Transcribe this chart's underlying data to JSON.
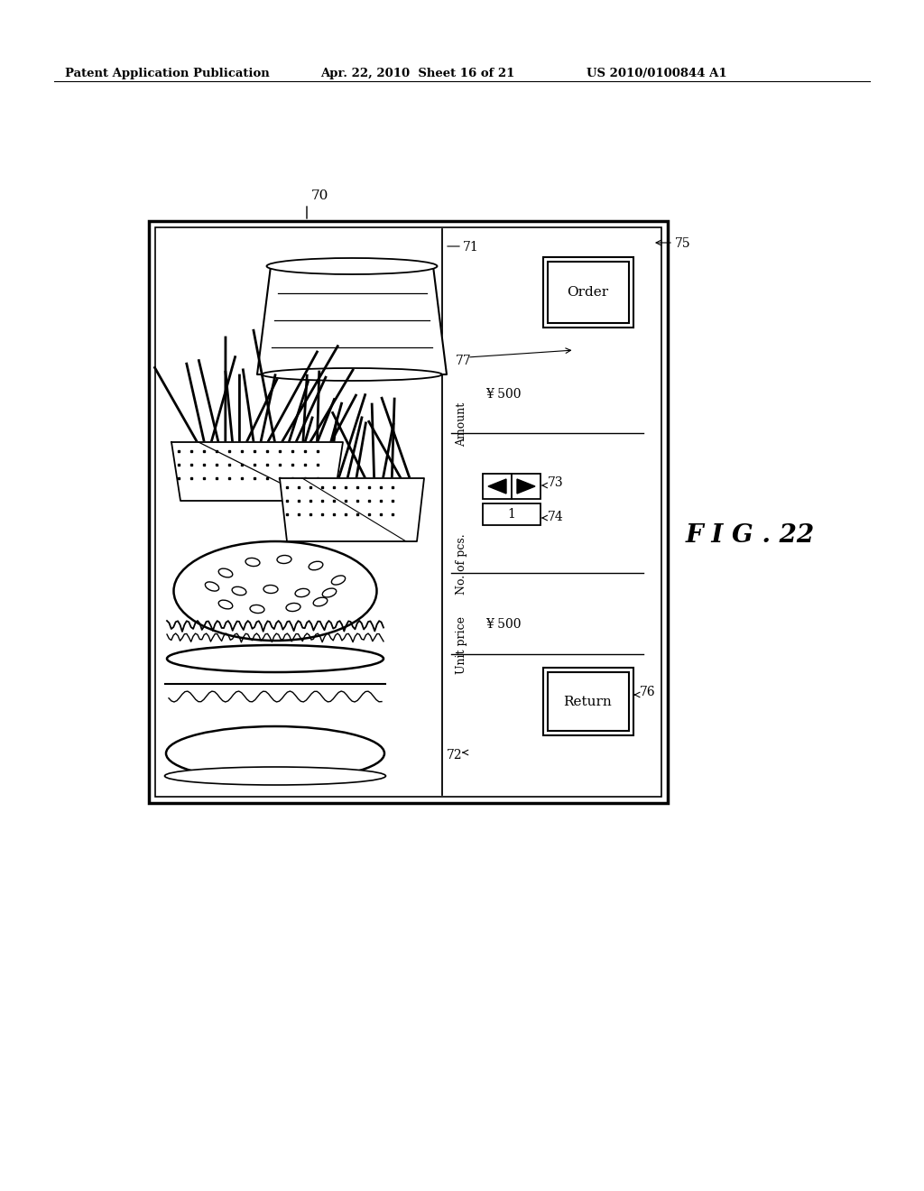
{
  "bg_color": "#ffffff",
  "header_left": "Patent Application Publication",
  "header_mid": "Apr. 22, 2010  Sheet 16 of 21",
  "header_right": "US 2010/0100844 A1",
  "fig_label": "F I G . 22",
  "diagram_label": "70",
  "ref_71": "71",
  "ref_72": "72",
  "ref_73": "73",
  "ref_74": "74",
  "ref_75": "75",
  "ref_76": "76",
  "ref_77": "77",
  "label_unit_price": "Unit price",
  "label_no_of_pcs": "No. of pcs.",
  "label_amount": "Amount",
  "value_unit_price": "¥ 500",
  "value_amount": "¥ 500",
  "value_pcs": "1",
  "btn_order": "Order",
  "btn_return": "Return"
}
